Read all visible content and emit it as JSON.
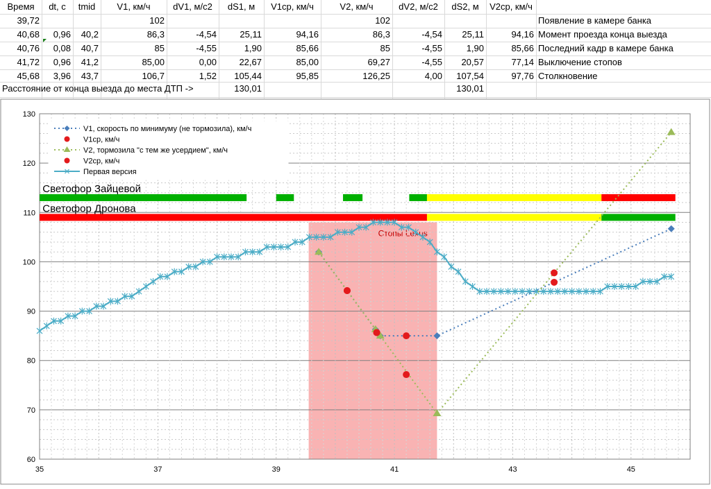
{
  "sheet": {
    "headers": [
      "Время",
      "dt, с",
      "tmid",
      "V1, км/ч",
      "dV1, м/с2",
      "dS1, м",
      "V1ср, км/ч",
      "V2, км/ч",
      "dV2, м/с2",
      "dS2, м",
      "V2ср, км/ч"
    ],
    "rows": [
      {
        "cells": [
          "39,72",
          "",
          "",
          "102",
          "",
          "",
          "",
          "102",
          "",
          "",
          ""
        ],
        "label": "Появление в камере банка"
      },
      {
        "cells": [
          "40,68",
          "0,96",
          "40,2",
          "86,3",
          "-4,54",
          "25,11",
          "94,16",
          "86,3",
          "-4,54",
          "25,11",
          "94,16"
        ],
        "label": "Момент проезда конца выезда"
      },
      {
        "cells": [
          "40,76",
          "0,08",
          "40,7",
          "85",
          "-4,55",
          "1,90",
          "85,66",
          "85",
          "-4,55",
          "1,90",
          "85,66"
        ],
        "label": "Последний кадр в камере банка"
      },
      {
        "cells": [
          "41,72",
          "0,96",
          "41,2",
          "85,00",
          "0,00",
          "22,67",
          "85,00",
          "69,27",
          "-4,55",
          "20,57",
          "77,14"
        ],
        "label": "Выключение  стопов"
      },
      {
        "cells": [
          "45,68",
          "3,96",
          "43,7",
          "106,7",
          "1,52",
          "105,44",
          "95,85",
          "126,25",
          "4,00",
          "107,54",
          "97,76"
        ],
        "label": "Столкновение"
      }
    ],
    "summary": {
      "text": "Расстояние от конца выезда до места ДТП ->",
      "ds1": "130,01",
      "ds2": "130,01"
    }
  },
  "chart_data": {
    "type": "line",
    "xlim": [
      35,
      46
    ],
    "ylim": [
      60,
      130
    ],
    "xticks": [
      35,
      37,
      39,
      41,
      43,
      45
    ],
    "yticks": [
      60,
      70,
      80,
      90,
      100,
      110,
      120,
      130
    ],
    "grid": "on",
    "legend_placement": "top-left",
    "colors": {
      "v1": "#4a7ebb",
      "v1avg": "#e31a1c",
      "v2": "#9bbb59",
      "v2avg": "#e31a1c",
      "first": "#4bacc6",
      "brake_zone": "#f8a6a6",
      "green": "#00b000",
      "yellow": "#ffff00",
      "red": "#ff0000"
    },
    "series": [
      {
        "name": "V1, скорость по минимуму (не тормозила), км/ч",
        "key": "v1",
        "style": "dotted-diamond",
        "x": [
          39.72,
          40.68,
          40.76,
          41.72,
          45.68
        ],
        "y": [
          102,
          86.3,
          85,
          85,
          106.7
        ]
      },
      {
        "name": "V1ср, км/ч",
        "key": "v1avg",
        "style": "dot",
        "x": [
          40.2,
          40.7,
          41.2,
          43.7
        ],
        "y": [
          94.16,
          85.66,
          85.0,
          95.85
        ]
      },
      {
        "name": "V2, тормозила \"с тем же усердием\", км/ч",
        "key": "v2",
        "style": "dotted-triangle",
        "x": [
          39.72,
          40.68,
          40.76,
          41.72,
          45.68
        ],
        "y": [
          102,
          86.3,
          85,
          69.27,
          126.25
        ]
      },
      {
        "name": "V2ср, км/ч",
        "key": "v2avg",
        "style": "dot",
        "x": [
          40.2,
          40.7,
          41.2,
          43.7
        ],
        "y": [
          94.16,
          85.66,
          77.14,
          97.76
        ]
      },
      {
        "name": "Первая версия",
        "key": "first",
        "style": "solid-star",
        "x": [
          35.0,
          35.12,
          35.24,
          35.36,
          35.48,
          35.6,
          35.72,
          35.84,
          35.96,
          36.08,
          36.2,
          36.32,
          36.44,
          36.56,
          36.68,
          36.8,
          36.92,
          37.04,
          37.16,
          37.28,
          37.4,
          37.52,
          37.64,
          37.76,
          37.88,
          38.0,
          38.12,
          38.24,
          38.36,
          38.48,
          38.6,
          38.72,
          38.84,
          38.96,
          39.08,
          39.2,
          39.32,
          39.44,
          39.56,
          39.68,
          39.8,
          39.92,
          40.04,
          40.16,
          40.28,
          40.4,
          40.52,
          40.64,
          40.76,
          40.88,
          41.0,
          41.12,
          41.24,
          41.36,
          41.48,
          41.6,
          41.72,
          41.84,
          41.96,
          42.08,
          42.2,
          42.32,
          42.44,
          42.56,
          42.68,
          42.8,
          42.92,
          43.04,
          43.16,
          43.28,
          43.4,
          43.52,
          43.64,
          43.76,
          43.88,
          44.0,
          44.12,
          44.24,
          44.36,
          44.48,
          44.6,
          44.72,
          44.84,
          44.96,
          45.08,
          45.2,
          45.32,
          45.44,
          45.56,
          45.68
        ],
        "y": [
          86,
          87,
          88,
          88,
          89,
          89,
          90,
          90,
          91,
          91,
          92,
          92,
          93,
          93,
          94,
          95,
          96,
          97,
          97,
          98,
          98,
          99,
          99,
          100,
          100,
          101,
          101,
          101,
          101,
          102,
          102,
          102,
          103,
          103,
          103,
          103,
          104,
          104,
          105,
          105,
          105,
          105,
          106,
          106,
          106,
          107,
          107,
          108,
          108,
          108,
          108,
          107,
          107,
          106,
          105,
          104,
          102,
          101,
          99,
          98,
          96,
          95,
          94,
          94,
          94,
          94,
          94,
          94,
          94,
          94,
          94,
          94,
          94,
          94,
          94,
          94,
          94,
          94,
          94,
          94,
          95,
          95,
          95,
          95,
          95,
          96,
          96,
          96,
          97,
          97
        ]
      }
    ],
    "brake_zone": {
      "label": "Стопы Lexus",
      "x0": 39.55,
      "x1": 41.72,
      "y_top": 108
    },
    "traffic_lights": [
      {
        "label": "Светофор Зайцевой",
        "y": 113,
        "segments": [
          {
            "from": 35.0,
            "to": 38.5,
            "color": "green"
          },
          {
            "from": 39.0,
            "to": 39.3,
            "color": "green"
          },
          {
            "from": 40.13,
            "to": 40.46,
            "color": "green"
          },
          {
            "from": 41.25,
            "to": 41.55,
            "color": "green"
          },
          {
            "from": 41.55,
            "to": 44.5,
            "color": "yellow"
          },
          {
            "from": 44.5,
            "to": 45.75,
            "color": "red"
          }
        ]
      },
      {
        "label": "Светофор Дронова",
        "y": 109,
        "segments": [
          {
            "from": 35.0,
            "to": 41.55,
            "color": "red"
          },
          {
            "from": 41.55,
            "to": 44.5,
            "color": "yellow"
          },
          {
            "from": 44.5,
            "to": 45.75,
            "color": "green"
          }
        ]
      }
    ]
  }
}
